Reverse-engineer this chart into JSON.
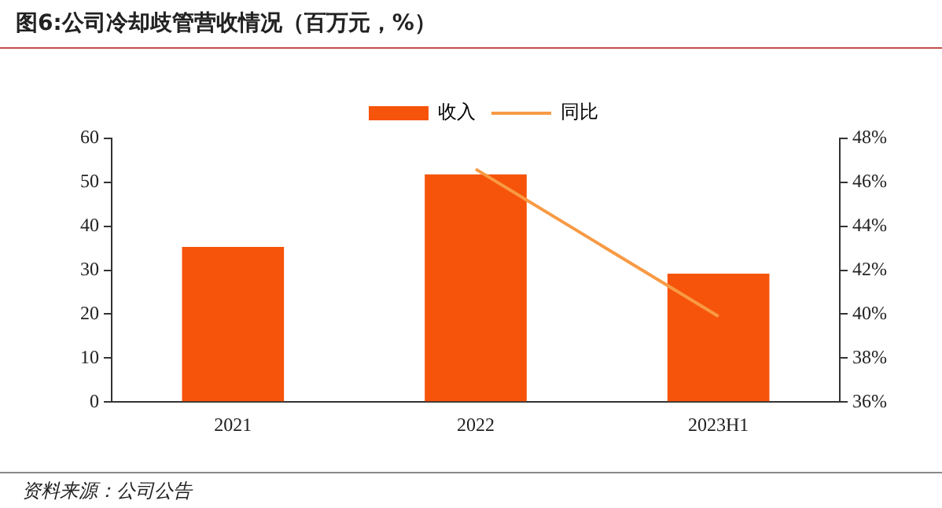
{
  "chart_data": {
    "type": "bar",
    "title": "图6:公司冷却歧管营收情况（百万元，%）",
    "categories": [
      "2021",
      "2022",
      "2023H1"
    ],
    "series": [
      {
        "name": "收入",
        "color": "#f6540a",
        "values": [
          35.3,
          51.8,
          29.2
        ]
      },
      {
        "name": "同比",
        "type": "line",
        "axis": "y2",
        "color": "#f89a44",
        "values": [
          null,
          46.6,
          39.9
        ]
      }
    ],
    "ylim": [
      0,
      60
    ],
    "yticks": [
      0,
      10,
      20,
      30,
      40,
      50,
      60
    ],
    "y2lim": [
      36,
      48
    ],
    "y2ticks": [
      {
        "value": 36,
        "label": "36%"
      },
      {
        "value": 38,
        "label": "38%"
      },
      {
        "value": 40,
        "label": "40%"
      },
      {
        "value": 42,
        "label": "42%"
      },
      {
        "value": 44,
        "label": "44%"
      },
      {
        "value": 46,
        "label": "46%"
      },
      {
        "value": 48,
        "label": "48%"
      }
    ],
    "grid": false,
    "legend": "top",
    "marker": "none",
    "annotations": [
      "资料来源：公司公告"
    ]
  }
}
